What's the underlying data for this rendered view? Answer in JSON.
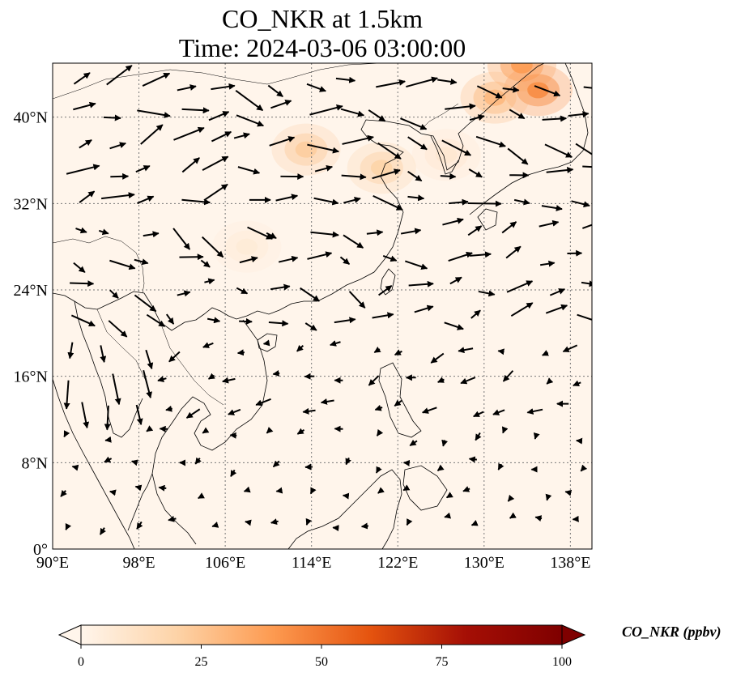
{
  "title": {
    "line1": "CO_NKR at 1.5km",
    "line2": "Time: 2024-03-06 03:00:00"
  },
  "map": {
    "extent": {
      "lon_min": 90,
      "lon_max": 140,
      "lat_min": 0,
      "lat_max": 45
    },
    "grid": "dotted",
    "lon_ticks": [
      {
        "value": 90,
        "label": "90°E"
      },
      {
        "value": 98,
        "label": "98°E"
      },
      {
        "value": 106,
        "label": "106°E"
      },
      {
        "value": 114,
        "label": "114°E"
      },
      {
        "value": 122,
        "label": "122°E"
      },
      {
        "value": 130,
        "label": "130°E"
      },
      {
        "value": 138,
        "label": "138°E"
      }
    ],
    "lat_ticks": [
      {
        "value": 0,
        "label": "0°"
      },
      {
        "value": 8,
        "label": "8°N"
      },
      {
        "value": 16,
        "label": "16°N"
      },
      {
        "value": 24,
        "label": "24°N"
      },
      {
        "value": 32,
        "label": "32°N"
      },
      {
        "value": 40,
        "label": "40°N"
      }
    ],
    "background_color": "#fff5eb",
    "hotspots": [
      {
        "lon": 135,
        "lat": 42.5,
        "level": 45
      },
      {
        "lon": 133.5,
        "lat": 44.8,
        "level": 40
      },
      {
        "lon": 131,
        "lat": 41.8,
        "level": 30
      },
      {
        "lon": 113.5,
        "lat": 37,
        "level": 22
      },
      {
        "lon": 120.5,
        "lat": 35.3,
        "level": 20
      },
      {
        "lon": 126.5,
        "lat": 36.5,
        "level": 8
      },
      {
        "lon": 108,
        "lat": 28,
        "level": 6
      }
    ]
  },
  "colorbar": {
    "label": "CO_NKR (ppbv)",
    "min": 0,
    "max": 100,
    "extend": "both",
    "ticks": [
      {
        "value": 0,
        "label": "0"
      },
      {
        "value": 25,
        "label": "25"
      },
      {
        "value": 50,
        "label": "50"
      },
      {
        "value": 75,
        "label": "75"
      },
      {
        "value": 100,
        "label": "100"
      }
    ],
    "colors": [
      "#fff5eb",
      "#fdd3a7",
      "#fd9a50",
      "#e5540f",
      "#a50f05",
      "#7f0000"
    ]
  }
}
